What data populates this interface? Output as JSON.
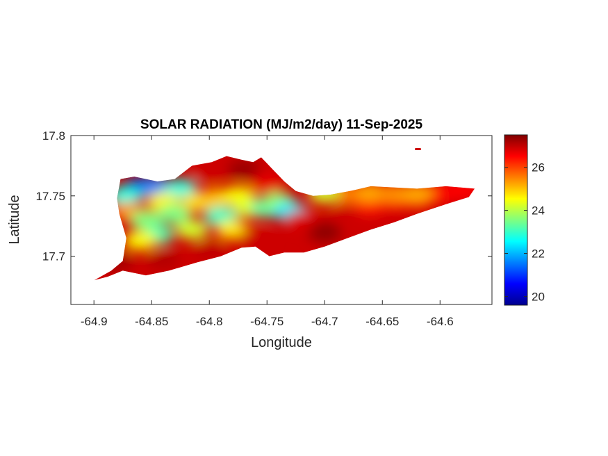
{
  "chart_data": {
    "type": "heatmap",
    "title": "SOLAR RADIATION (MJ/m2/day) 11-Sep-2025",
    "xlabel": "Longitude",
    "ylabel": "Latitude",
    "xlim": [
      -64.92,
      -64.555
    ],
    "ylim": [
      17.66,
      17.8
    ],
    "xticks": [
      -64.9,
      -64.85,
      -64.8,
      -64.75,
      -64.7,
      -64.65,
      -64.6
    ],
    "xtick_labels": [
      "-64.9",
      "-64.85",
      "-64.8",
      "-64.75",
      "-64.7",
      "-64.65",
      "-64.6"
    ],
    "yticks": [
      17.7,
      17.75,
      17.8
    ],
    "ytick_labels": [
      "17.7",
      "17.75",
      "17.8"
    ],
    "colormap": "jet",
    "clim": [
      19.6,
      27.5
    ],
    "colorbar_ticks": [
      20,
      22,
      24,
      26
    ],
    "colorbar_tick_labels": [
      "20",
      "22",
      "24",
      "26"
    ],
    "grid": false,
    "region_outline": [
      [
        -64.9,
        17.68
      ],
      [
        -64.885,
        17.688
      ],
      [
        -64.875,
        17.696
      ],
      [
        -64.872,
        17.715
      ],
      [
        -64.878,
        17.735
      ],
      [
        -64.88,
        17.748
      ],
      [
        -64.877,
        17.764
      ],
      [
        -64.865,
        17.766
      ],
      [
        -64.845,
        17.762
      ],
      [
        -64.83,
        17.764
      ],
      [
        -64.815,
        17.775
      ],
      [
        -64.798,
        17.778
      ],
      [
        -64.785,
        17.783
      ],
      [
        -64.772,
        17.78
      ],
      [
        -64.762,
        17.778
      ],
      [
        -64.755,
        17.782
      ],
      [
        -64.745,
        17.772
      ],
      [
        -64.735,
        17.762
      ],
      [
        -64.725,
        17.754
      ],
      [
        -64.71,
        17.75
      ],
      [
        -64.695,
        17.751
      ],
      [
        -64.678,
        17.754
      ],
      [
        -64.66,
        17.758
      ],
      [
        -64.64,
        17.757
      ],
      [
        -64.62,
        17.756
      ],
      [
        -64.595,
        17.758
      ],
      [
        -64.57,
        17.756
      ],
      [
        -64.575,
        17.749
      ],
      [
        -64.595,
        17.743
      ],
      [
        -64.62,
        17.735
      ],
      [
        -64.64,
        17.728
      ],
      [
        -64.66,
        17.722
      ],
      [
        -64.68,
        17.715
      ],
      [
        -64.7,
        17.708
      ],
      [
        -64.718,
        17.703
      ],
      [
        -64.735,
        17.703
      ],
      [
        -64.748,
        17.7
      ],
      [
        -64.76,
        17.708
      ],
      [
        -64.772,
        17.707
      ],
      [
        -64.79,
        17.7
      ],
      [
        -64.81,
        17.695
      ],
      [
        -64.835,
        17.688
      ],
      [
        -64.855,
        17.684
      ],
      [
        -64.875,
        17.688
      ],
      [
        -64.888,
        17.683
      ]
    ],
    "field_points": [
      {
        "lon": -64.86,
        "lat": 17.757,
        "value": 20.3
      },
      {
        "lon": -64.848,
        "lat": 17.758,
        "value": 21.6
      },
      {
        "lon": -64.873,
        "lat": 17.75,
        "value": 22.8
      },
      {
        "lon": -64.825,
        "lat": 17.756,
        "value": 22.8
      },
      {
        "lon": -64.84,
        "lat": 17.745,
        "value": 24.6
      },
      {
        "lon": -64.87,
        "lat": 17.737,
        "value": 25.4
      },
      {
        "lon": -64.855,
        "lat": 17.73,
        "value": 23.6
      },
      {
        "lon": -64.83,
        "lat": 17.735,
        "value": 23.5
      },
      {
        "lon": -64.81,
        "lat": 17.745,
        "value": 24.8
      },
      {
        "lon": -64.795,
        "lat": 17.748,
        "value": 25.0
      },
      {
        "lon": -64.79,
        "lat": 17.733,
        "value": 23.0
      },
      {
        "lon": -64.775,
        "lat": 17.75,
        "value": 24.5
      },
      {
        "lon": -64.765,
        "lat": 17.74,
        "value": 24.3
      },
      {
        "lon": -64.75,
        "lat": 17.74,
        "value": 23.2
      },
      {
        "lon": -64.74,
        "lat": 17.745,
        "value": 23.7
      },
      {
        "lon": -64.73,
        "lat": 17.737,
        "value": 22.4
      },
      {
        "lon": -64.845,
        "lat": 17.718,
        "value": 23.2
      },
      {
        "lon": -64.815,
        "lat": 17.722,
        "value": 24.2
      },
      {
        "lon": -64.78,
        "lat": 17.722,
        "value": 24.7
      },
      {
        "lon": -64.86,
        "lat": 17.713,
        "value": 24.5
      },
      {
        "lon": -64.8,
        "lat": 17.77,
        "value": 26.9
      },
      {
        "lon": -64.77,
        "lat": 17.772,
        "value": 27.3
      },
      {
        "lon": -64.75,
        "lat": 17.76,
        "value": 26.7
      },
      {
        "lon": -64.88,
        "lat": 17.695,
        "value": 27.2
      },
      {
        "lon": -64.84,
        "lat": 17.697,
        "value": 27.1
      },
      {
        "lon": -64.8,
        "lat": 17.705,
        "value": 27.0
      },
      {
        "lon": -64.76,
        "lat": 17.715,
        "value": 26.9
      },
      {
        "lon": -64.72,
        "lat": 17.73,
        "value": 26.8
      },
      {
        "lon": -64.7,
        "lat": 17.72,
        "value": 27.4
      },
      {
        "lon": -64.68,
        "lat": 17.735,
        "value": 26.9
      },
      {
        "lon": -64.66,
        "lat": 17.742,
        "value": 26.3
      },
      {
        "lon": -64.64,
        "lat": 17.745,
        "value": 26.6
      },
      {
        "lon": -64.62,
        "lat": 17.748,
        "value": 26.0
      },
      {
        "lon": -64.6,
        "lat": 17.752,
        "value": 26.4
      },
      {
        "lon": -64.68,
        "lat": 17.752,
        "value": 25.6
      },
      {
        "lon": -64.66,
        "lat": 17.753,
        "value": 25.2
      },
      {
        "lon": -64.64,
        "lat": 17.752,
        "value": 25.4
      },
      {
        "lon": -64.62,
        "lat": 17.752,
        "value": 25.2
      },
      {
        "lon": -64.7,
        "lat": 17.752,
        "value": 24.2
      },
      {
        "lon": -64.58,
        "lat": 17.755,
        "value": 26.5
      }
    ]
  }
}
